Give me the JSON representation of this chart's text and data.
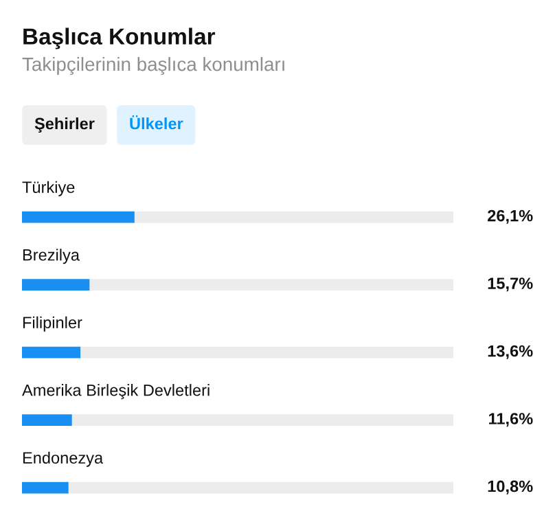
{
  "chart_data": {
    "type": "bar",
    "orientation": "horizontal",
    "stacked": true,
    "title": "Başlıca Konumlar",
    "subtitle": "Takipçilerinin başlıca konumları",
    "annotations": [
      "Şehirler",
      "Ülkeler"
    ],
    "categories": [
      "Türkiye",
      "Brezilya",
      "Filipinler",
      "Amerika Birleşik Devletleri",
      "Endonezya"
    ],
    "series": [
      {
        "color": "#1a8ff2",
        "values": [
          26.1,
          15.7,
          13.6,
          11.6,
          10.8
        ],
        "value_labels": [
          "26,1%",
          "15,7%",
          "13,6%",
          "11,6%",
          "10,8%"
        ]
      },
      {
        "color": "#ececec",
        "values": [
          73.9,
          84.3,
          86.4,
          88.4,
          89.2
        ]
      }
    ],
    "xlim": [
      0,
      100
    ],
    "tick_labels": false
  }
}
